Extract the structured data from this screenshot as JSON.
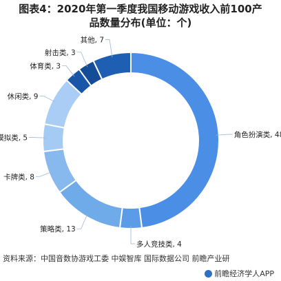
{
  "title": {
    "line1": "图表4：2020年第一季度我国移动游戏收入前100产",
    "line2": "品数量分布(单位：个)"
  },
  "chart_data": {
    "type": "pie",
    "donut": true,
    "title": "图表4：2020年第一季度我国移动游戏收入前100产品数量分布(单位：个)",
    "unit": "个",
    "categories": [
      "角色扮演类",
      "多人竞技类",
      "策略类",
      "卡牌类",
      "模拟类",
      "休闲类",
      "体育类",
      "射击类",
      "其他"
    ],
    "values": [
      48,
      4,
      13,
      8,
      5,
      9,
      3,
      3,
      7
    ],
    "data_labels": [
      "角色扮演类, 48",
      "多人竞技类, 4",
      "策略类, 13",
      "卡牌类, 8",
      "模拟类, 5",
      "休闲类, 9",
      "体育类, 3",
      "射击类, 3",
      "其他, 7"
    ],
    "colors": [
      "#4a8ee6",
      "#5b9be8",
      "#6faae9",
      "#88b9ee",
      "#a3cbf3",
      "#a9cdf4",
      "#1a56a8",
      "#154c98",
      "#1e5fb3"
    ],
    "start": "12 o'clock",
    "direction": "clockwise"
  },
  "source": "资料来源：中国音数协游戏工委 中娱智库 国际数据公司 前瞻产业研",
  "brand": "前瞻经济学人APP"
}
